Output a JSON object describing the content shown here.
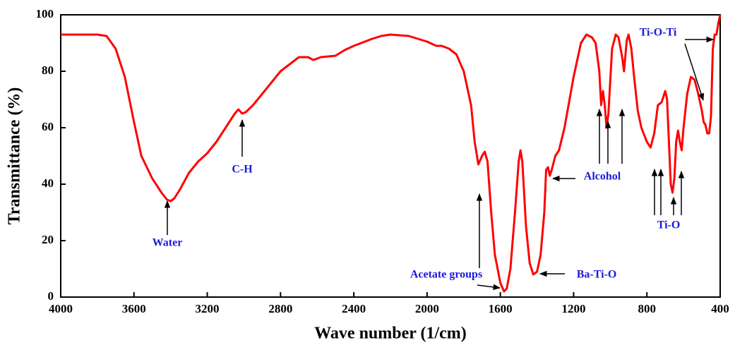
{
  "chart_data": {
    "type": "line",
    "xlabel": "Wave number (1/cm)",
    "ylabel": "Transmittance (%)",
    "xlim": [
      4000,
      400
    ],
    "ylim": [
      0,
      100
    ],
    "xticks": [
      4000,
      3600,
      3200,
      2800,
      2400,
      2000,
      1600,
      1200,
      800,
      400
    ],
    "yticks": [
      0,
      20,
      40,
      60,
      80,
      100
    ],
    "annotations": [
      "Water",
      "C-H",
      "Acetate groups",
      "Ba-Ti-O",
      "Alcohol",
      "Ti-O",
      "Ti-O-Ti"
    ],
    "series": [
      {
        "color": "#ff0000",
        "x": [
          4000,
          3800,
          3750,
          3700,
          3650,
          3600,
          3560,
          3500,
          3450,
          3420,
          3400,
          3380,
          3350,
          3300,
          3250,
          3200,
          3150,
          3100,
          3050,
          3030,
          3010,
          2990,
          2950,
          2900,
          2850,
          2800,
          2750,
          2700,
          2650,
          2620,
          2580,
          2500,
          2450,
          2400,
          2300,
          2250,
          2200,
          2100,
          2000,
          1950,
          1920,
          1880,
          1840,
          1800,
          1760,
          1740,
          1720,
          1700,
          1685,
          1670,
          1650,
          1630,
          1600,
          1580,
          1565,
          1545,
          1520,
          1500,
          1490,
          1480,
          1460,
          1440,
          1420,
          1400,
          1380,
          1360,
          1350,
          1340,
          1330,
          1320,
          1300,
          1280,
          1250,
          1200,
          1160,
          1130,
          1100,
          1080,
          1060,
          1050,
          1040,
          1030,
          1020,
          1010,
          990,
          970,
          955,
          935,
          925,
          910,
          900,
          885,
          870,
          850,
          830,
          800,
          780,
          760,
          740,
          720,
          700,
          690,
          680,
          670,
          660,
          650,
          640,
          630,
          620,
          610,
          600,
          580,
          560,
          540,
          520,
          500,
          490,
          480,
          470,
          460,
          450,
          440,
          430,
          420,
          410,
          400
        ],
        "values": [
          93,
          93,
          92.5,
          88,
          78,
          62,
          50,
          42,
          37,
          34.5,
          34,
          35,
          38,
          44,
          48,
          51,
          55,
          60,
          65,
          66.5,
          65,
          65.5,
          68,
          72,
          76,
          80,
          82.5,
          85,
          85,
          84,
          85,
          85.5,
          87.5,
          89,
          91.5,
          92.5,
          93,
          92.5,
          90.5,
          89,
          89,
          88,
          86,
          80,
          68,
          55,
          47,
          50,
          51.5,
          48,
          30,
          15,
          5,
          2,
          3,
          10,
          30,
          48,
          52,
          48,
          25,
          12,
          8,
          9,
          15,
          30,
          45,
          46,
          43,
          45,
          50,
          52,
          60,
          78,
          90,
          93,
          92,
          90,
          80,
          68,
          73,
          68,
          60,
          65,
          88,
          93,
          92,
          85,
          80,
          91,
          93,
          88,
          78,
          66,
          60,
          55,
          53,
          58,
          68,
          69,
          73,
          70,
          55,
          40,
          37,
          42,
          55,
          59,
          55,
          52,
          60,
          72,
          78,
          77,
          72,
          66,
          62,
          61,
          58,
          58,
          64,
          88,
          93,
          93,
          97,
          100
        ]
      }
    ]
  }
}
